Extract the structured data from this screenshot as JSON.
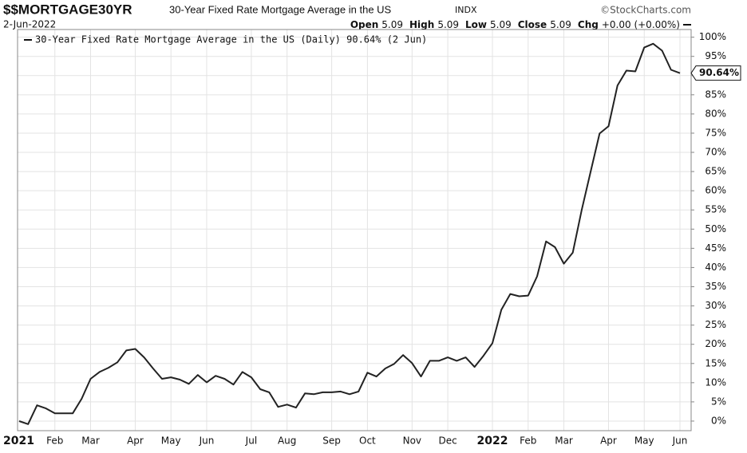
{
  "chart_data": {
    "type": "line",
    "symbol": "$$MORTGAGE30YR",
    "title": "30-Year Fixed Rate Mortgage Average in the US",
    "exchange": "INDX",
    "source": "©StockCharts.com",
    "date": "2-Jun-2022",
    "ohlc": [
      {
        "label": "Open",
        "value": "5.09"
      },
      {
        "label": "High",
        "value": "5.09"
      },
      {
        "label": "Low",
        "value": "5.09"
      },
      {
        "label": "Close",
        "value": "5.09"
      },
      {
        "label": "Chg",
        "value": "+0.00 (+0.00%)"
      }
    ],
    "categories": [
      "2021",
      null,
      null,
      null,
      "Feb",
      null,
      null,
      null,
      "Mar",
      null,
      null,
      null,
      null,
      "Apr",
      null,
      null,
      null,
      "May",
      null,
      null,
      null,
      "Jun",
      null,
      null,
      null,
      null,
      "Jul",
      null,
      null,
      null,
      "Aug",
      null,
      null,
      null,
      null,
      "Sep",
      null,
      null,
      null,
      "Oct",
      null,
      null,
      null,
      null,
      "Nov",
      null,
      null,
      null,
      "Dec",
      null,
      null,
      null,
      null,
      "2022",
      null,
      null,
      null,
      "Feb",
      null,
      null,
      null,
      "Mar",
      null,
      null,
      null,
      null,
      "Apr",
      null,
      null,
      null,
      "May",
      null,
      null,
      null,
      "Jun"
    ],
    "series": [
      {
        "name": "30-Year Fixed Rate Mortgage Average in the US (Daily) 90.64% (2 Jun)",
        "color": "#222222",
        "values": [
          0,
          -0.8,
          4.1,
          3.3,
          2,
          2,
          2,
          5.8,
          11,
          12.8,
          13.9,
          15.3,
          18.4,
          18.8,
          16.6,
          13.7,
          11,
          11.4,
          10.8,
          9.7,
          12,
          10.1,
          11.8,
          11,
          9.5,
          12.8,
          11.4,
          8.3,
          7.5,
          3.7,
          4.3,
          3.5,
          7.2,
          7,
          7.5,
          7.5,
          7.7,
          7,
          7.7,
          12.6,
          11.6,
          13.7,
          14.9,
          17.2,
          15.1,
          11.6,
          15.7,
          15.7,
          16.6,
          15.7,
          16.6,
          14.1,
          17,
          20.3,
          29,
          33.1,
          32.5,
          32.7,
          37.7,
          46.8,
          45.3,
          41,
          43.9,
          55,
          65,
          74.9,
          76.8,
          87.4,
          91.3,
          91.1,
          97.3,
          98.3,
          96.5,
          91.5,
          90.64
        ],
        "value_labels": [
          null,
          null,
          null,
          null,
          null,
          null,
          null,
          null,
          null,
          null,
          null,
          null,
          null,
          null,
          null,
          null,
          null,
          null,
          null,
          null,
          null,
          null,
          null,
          null,
          null,
          null,
          null,
          null,
          null,
          null,
          null,
          null,
          null,
          null,
          null,
          null,
          null,
          null,
          null,
          null,
          null,
          null,
          null,
          null,
          null,
          null,
          null,
          null,
          null,
          null,
          null,
          null,
          null,
          null,
          null,
          null,
          null,
          null,
          null,
          null,
          null,
          null,
          null,
          null,
          null,
          null,
          null,
          null,
          null,
          null,
          null,
          null,
          null,
          null,
          "90.64%"
        ]
      }
    ],
    "ylim": [
      -2.5,
      102
    ],
    "yticks": [
      {
        "value": 0,
        "label": "0%"
      },
      {
        "value": 5,
        "label": "5%"
      },
      {
        "value": 10,
        "label": "10%"
      },
      {
        "value": 15,
        "label": "15%"
      },
      {
        "value": 20,
        "label": "20%"
      },
      {
        "value": 25,
        "label": "25%"
      },
      {
        "value": 30,
        "label": "30%"
      },
      {
        "value": 35,
        "label": "35%"
      },
      {
        "value": 40,
        "label": "40%"
      },
      {
        "value": 45,
        "label": "45%"
      },
      {
        "value": 50,
        "label": "50%"
      },
      {
        "value": 55,
        "label": "55%"
      },
      {
        "value": 60,
        "label": "60%"
      },
      {
        "value": 65,
        "label": "65%"
      },
      {
        "value": 70,
        "label": "70%"
      },
      {
        "value": 75,
        "label": "75%"
      },
      {
        "value": 80,
        "label": "80%"
      },
      {
        "value": 85,
        "label": "85%"
      },
      {
        "value": 90,
        "label": "90%"
      },
      {
        "value": 95,
        "label": "95%"
      },
      {
        "value": 100,
        "label": "100%"
      }
    ],
    "grid": true
  }
}
